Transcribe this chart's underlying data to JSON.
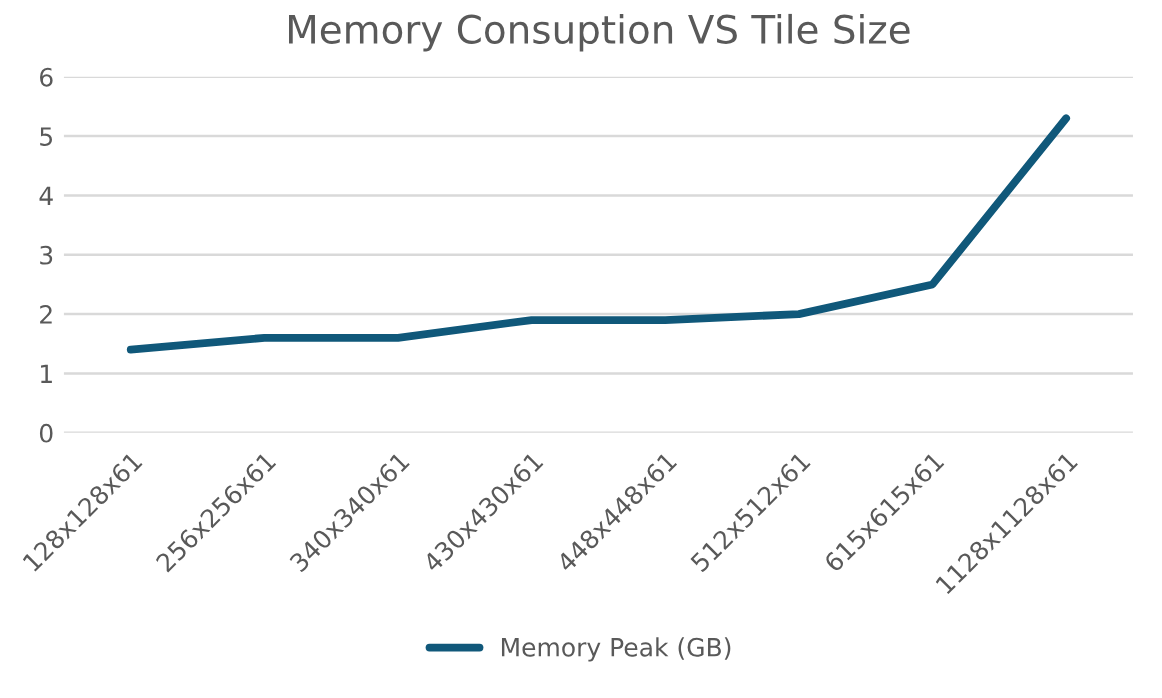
{
  "chart_data": {
    "type": "line",
    "title": "Memory Consuption VS Tile Size",
    "categories": [
      "128x128x61",
      "256x256x61",
      "340x340x61",
      "430x430x61",
      "448x448x61",
      "512x512x61",
      "615x615x61",
      "1128x1128x61"
    ],
    "series": [
      {
        "name": "Memory Peak (GB)",
        "color": "#10587a",
        "values": [
          1.4,
          1.6,
          1.6,
          1.9,
          1.9,
          2.0,
          2.5,
          5.3
        ]
      }
    ],
    "ylim": [
      0,
      6
    ],
    "yticks": [
      0,
      1,
      2,
      3,
      4,
      5,
      6
    ],
    "grid": "y",
    "legend": "bottom",
    "marker": "none",
    "line_style": "solid"
  }
}
